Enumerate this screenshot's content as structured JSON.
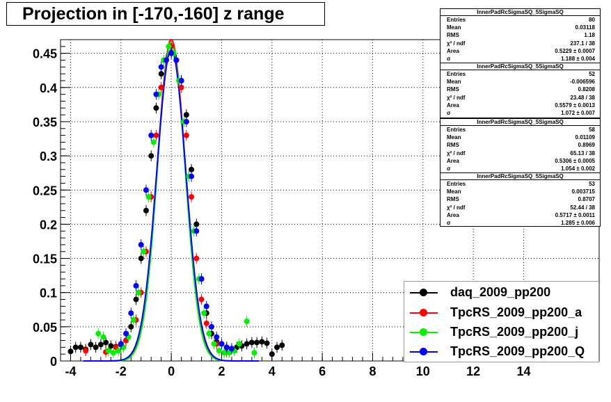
{
  "title": "Projection in [-170,-160] z range",
  "stat_boxes": [
    {
      "name": "InnerPadRcSigmaSQ_5SigmaSQ",
      "rows": [
        {
          "label": "Entries",
          "value": "80"
        },
        {
          "label": "Mean",
          "value": "0.03118"
        },
        {
          "label": "RMS",
          "value": "1.18"
        },
        {
          "label": "χ² / ndf",
          "value": "237.1 / 38"
        },
        {
          "label": "Area",
          "value": "0.5229 ± 0.0007"
        },
        {
          "label": "σ",
          "value": "1.188 ± 0.004"
        }
      ]
    },
    {
      "name": "InnerPadRcSigmaSQ_5SigmaSQ",
      "rows": [
        {
          "label": "Entries",
          "value": "52"
        },
        {
          "label": "Mean",
          "value": "-0.006596"
        },
        {
          "label": "RMS",
          "value": "0.8208"
        },
        {
          "label": "χ² / ndf",
          "value": "23.48 / 38"
        },
        {
          "label": "Area",
          "value": "0.5579 ± 0.0013"
        },
        {
          "label": "σ",
          "value": "1.072 ± 0.007"
        }
      ]
    },
    {
      "name": "InnerPadRcSigmaSQ_5SigmaSQ",
      "rows": [
        {
          "label": "Entries",
          "value": "58"
        },
        {
          "label": "Mean",
          "value": "0.01109"
        },
        {
          "label": "RMS",
          "value": "0.8969"
        },
        {
          "label": "χ² / ndf",
          "value": "65.13 / 38"
        },
        {
          "label": "Area",
          "value": "0.5306 ± 0.0005"
        },
        {
          "label": "σ",
          "value": "1.054 ± 0.002"
        }
      ]
    },
    {
      "name": "InnerPadRcSigmaSQ_5SigmaSQ",
      "rows": [
        {
          "label": "Entries",
          "value": "53"
        },
        {
          "label": "Mean",
          "value": "0.003715"
        },
        {
          "label": "RMS",
          "value": "0.8707"
        },
        {
          "label": "χ² / ndf",
          "value": "52.44 / 38"
        },
        {
          "label": "Area",
          "value": "0.5717 ± 0.0011"
        },
        {
          "label": "σ",
          "value": "1.285 ± 0.006"
        }
      ]
    }
  ],
  "chart_data": {
    "type": "scatter",
    "title": "Projection in [-170,-160] z range",
    "xlabel": "",
    "ylabel": "",
    "xlim": [
      -4.4,
      17
    ],
    "ylim": [
      0,
      0.47
    ],
    "grid": true,
    "legend_position": "bottom-right",
    "x_ticks": [
      -4,
      -2,
      0,
      2,
      4,
      6,
      8,
      10,
      12,
      14
    ],
    "y_ticks": [
      0,
      0.05,
      0.1,
      0.15,
      0.2,
      0.25,
      0.3,
      0.35,
      0.4,
      0.45
    ],
    "x_tick_labels": [
      "-4",
      "-2",
      "0",
      "2",
      "4",
      "6",
      "8",
      "10",
      "12",
      "14"
    ],
    "y_tick_labels": [
      "0",
      "0.05",
      "0.1",
      "0.15",
      "0.2",
      "0.25",
      "0.3",
      "0.35",
      "0.4",
      "0.45"
    ],
    "series": [
      {
        "name": "daq_2009_pp200",
        "color": "#000000",
        "x": [
          -4.0,
          -3.8,
          -3.6,
          -3.4,
          -3.2,
          -3.0,
          -2.8,
          -2.6,
          -2.4,
          -2.2,
          -2.0,
          -1.8,
          -1.6,
          -1.4,
          -1.2,
          -1.0,
          -0.8,
          -0.6,
          -0.4,
          -0.2,
          0.0,
          0.2,
          0.4,
          0.6,
          0.8,
          1.0,
          1.2,
          1.4,
          1.6,
          1.8,
          2.0,
          2.2,
          2.4,
          2.6,
          2.8,
          3.0,
          3.2,
          3.4,
          3.6,
          3.8,
          4.0,
          4.2,
          4.4
        ],
        "y": [
          0.014,
          0.02,
          0.02,
          0.017,
          0.024,
          0.02,
          0.024,
          0.027,
          0.022,
          0.021,
          0.024,
          0.03,
          0.05,
          0.09,
          0.15,
          0.22,
          0.3,
          0.37,
          0.42,
          0.44,
          0.45,
          0.44,
          0.41,
          0.36,
          0.28,
          0.2,
          0.12,
          0.07,
          0.04,
          0.028,
          0.025,
          0.02,
          0.018,
          0.02,
          0.022,
          0.025,
          0.027,
          0.027,
          0.028,
          0.026,
          0.01,
          0.02,
          0.023
        ]
      },
      {
        "name": "TpcRS_2009_pp200_a",
        "color": "#ff0000",
        "x": [
          -3.4,
          -2.6,
          -2.2,
          -1.8,
          -1.4,
          -1.2,
          -1.0,
          -0.8,
          -0.6,
          -0.4,
          -0.2,
          0.0,
          0.2,
          0.4,
          0.6,
          0.8,
          1.0,
          1.2,
          1.4,
          1.8,
          2.2
        ],
        "y": [
          0.015,
          0.013,
          0.02,
          0.03,
          0.06,
          0.1,
          0.16,
          0.24,
          0.33,
          0.4,
          0.44,
          0.46,
          0.44,
          0.4,
          0.33,
          0.24,
          0.15,
          0.09,
          0.055,
          0.025,
          0.013
        ],
        "fit_sigma": 0.56,
        "fit_peak": 0.47
      },
      {
        "name": "TpcRS_2009_pp200_j",
        "color": "#00ee00",
        "x": [
          -2.9,
          -2.7,
          -2.5,
          -2.3,
          -2.1,
          -1.9,
          -1.7,
          -1.5,
          -1.3,
          -1.1,
          -0.9,
          -0.7,
          -0.5,
          -0.3,
          -0.1,
          0.1,
          0.3,
          0.5,
          0.7,
          0.9,
          1.1,
          1.3,
          1.5,
          1.7,
          1.9,
          2.1,
          2.3,
          2.5,
          2.7,
          3.0,
          3.3
        ],
        "y": [
          0.04,
          0.035,
          0.015,
          0.012,
          0.015,
          0.02,
          0.035,
          0.06,
          0.1,
          0.16,
          0.24,
          0.32,
          0.39,
          0.44,
          0.46,
          0.45,
          0.41,
          0.35,
          0.27,
          0.19,
          0.12,
          0.07,
          0.04,
          0.025,
          0.015,
          0.012,
          0.012,
          0.015,
          0.025,
          0.058,
          0.012
        ],
        "fit_sigma": 0.55,
        "fit_peak": 0.465
      },
      {
        "name": "TpcRS_2009_pp200_Q",
        "color": "#0000ff",
        "x": [
          -2.0,
          -1.8,
          -1.6,
          -1.4,
          -1.2,
          -1.0,
          -0.8,
          -0.6,
          -0.4,
          -0.2,
          0.0,
          0.2,
          0.4,
          0.6,
          0.8,
          1.0,
          1.2,
          1.4,
          1.6,
          1.8,
          2.0,
          2.2,
          2.4
        ],
        "y": [
          0.025,
          0.04,
          0.07,
          0.11,
          0.17,
          0.25,
          0.33,
          0.39,
          0.43,
          0.44,
          0.45,
          0.44,
          0.41,
          0.35,
          0.27,
          0.19,
          0.12,
          0.08,
          0.05,
          0.035,
          0.025,
          0.02,
          0.018
        ],
        "fit_sigma": 0.58,
        "fit_peak": 0.455
      }
    ]
  }
}
